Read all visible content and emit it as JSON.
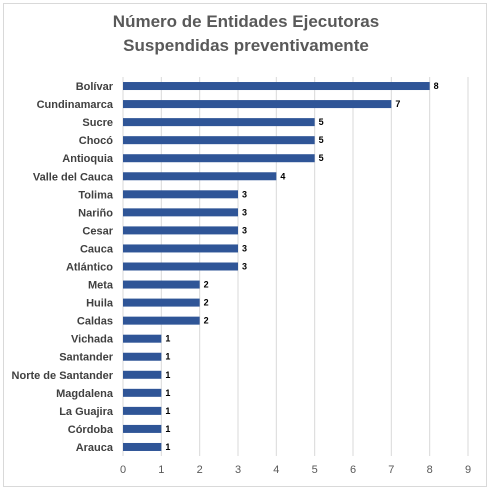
{
  "chart_data": {
    "type": "bar",
    "orientation": "horizontal",
    "title_lines": [
      "Número de Entidades Ejecutoras",
      "Suspendidas preventivamente"
    ],
    "categories": [
      "Bolívar",
      "Cundinamarca",
      "Sucre",
      "Chocó",
      "Antioquia",
      "Valle del Cauca",
      "Tolima",
      "Nariño",
      "Cesar",
      "Cauca",
      "Atlántico",
      "Meta",
      "Huila",
      "Caldas",
      "Vichada",
      "Santander",
      "Norte de Santander",
      "Magdalena",
      "La Guajira",
      "Córdoba",
      "Arauca"
    ],
    "values": [
      8,
      7,
      5,
      5,
      5,
      4,
      3,
      3,
      3,
      3,
      3,
      2,
      2,
      2,
      1,
      1,
      1,
      1,
      1,
      1,
      1
    ],
    "xlim": [
      0,
      9
    ],
    "x_ticks": [
      0,
      1,
      2,
      3,
      4,
      5,
      6,
      7,
      8,
      9
    ],
    "grid": true,
    "legend": "none",
    "bar_color": "#2f5597",
    "grid_color": "#d9d9d9"
  }
}
